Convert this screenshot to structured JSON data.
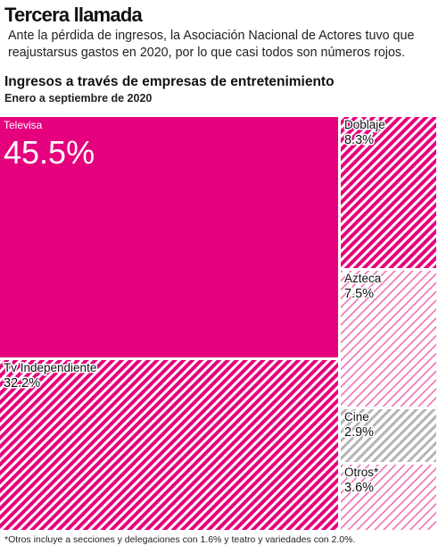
{
  "header": {
    "title": "Tercera llamada",
    "subtitle": "Ante la pérdida de ingresos, la Asociación Nacional de Actores tuvo que reajustarsus gastos en 2020, por lo que casi todos son números rojos."
  },
  "chart_data": {
    "type": "treemap",
    "title": "Ingresos a través de empresas de entretenimiento",
    "subtitle": "Enero a septiembre de 2020",
    "unit": "%",
    "items": [
      {
        "label": "Televisa",
        "value": 45.5,
        "display": "45.5%",
        "style": "solid-magenta"
      },
      {
        "label": "Tv Independiente",
        "value": 32.2,
        "display": "32.2%",
        "style": "hatch-dense-magenta"
      },
      {
        "label": "Doblaje",
        "value": 8.3,
        "display": "8.3%",
        "style": "hatch-dense-magenta"
      },
      {
        "label": "Azteca",
        "value": 7.5,
        "display": "7.5%",
        "style": "hatch-light-pink"
      },
      {
        "label": "Cine",
        "value": 2.9,
        "display": "2.9%",
        "style": "hatch-gray"
      },
      {
        "label": "Otros*",
        "value": 3.6,
        "display": "3.6%",
        "style": "hatch-light-pink"
      }
    ],
    "colors": {
      "magenta": "#e5007e",
      "pink": "#ef6fb6",
      "gray": "#b4b4b4"
    }
  },
  "footnote": "*Otros incluye a secciones y delegaciones con 1.6% y teatro y variedades con 2.0%."
}
